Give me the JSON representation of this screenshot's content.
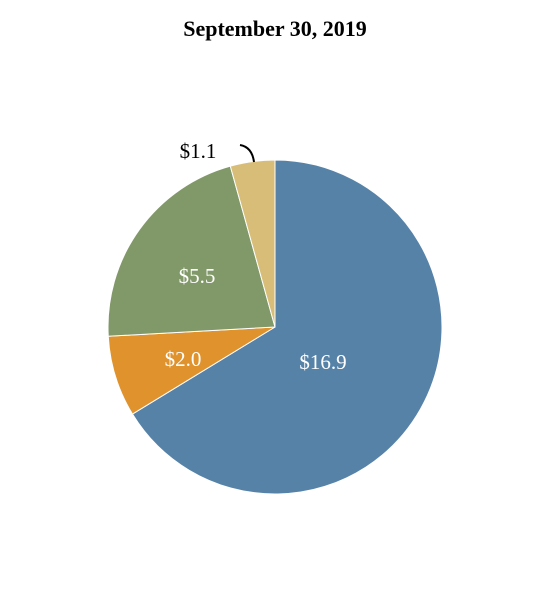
{
  "chart_data": {
    "type": "pie",
    "title": "September 30, 2019",
    "start_angle_deg": 0,
    "direction": "clockwise",
    "slices": [
      {
        "label": "$16.9",
        "value": 16.9,
        "color": "#5682a8"
      },
      {
        "label": "$2.0",
        "value": 2.0,
        "color": "#e0922c"
      },
      {
        "label": "$5.5",
        "value": 5.5,
        "color": "#819869"
      },
      {
        "label": "$1.1",
        "value": 1.1,
        "color": "#d7bd77"
      }
    ]
  }
}
